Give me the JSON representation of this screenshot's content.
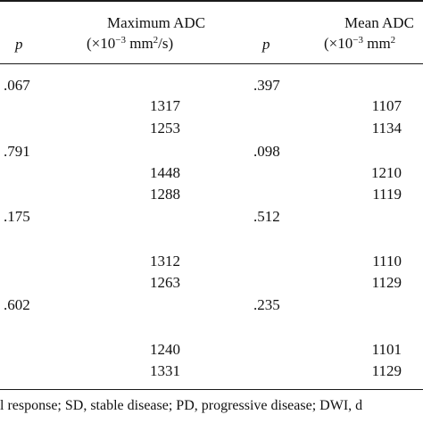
{
  "header": {
    "col_p_left": "p",
    "max_adc_title": "Maximum ADC",
    "max_adc_unit_pre": "(×10",
    "max_adc_unit_exp": "−3",
    "max_adc_unit_mid": " mm",
    "max_adc_unit_sq": "2",
    "max_adc_unit_post": "/s)",
    "col_p_right": "p",
    "mean_adc_title": "Mean ADC",
    "mean_adc_unit_pre": "(×10",
    "mean_adc_unit_exp": "−3",
    "mean_adc_unit_mid": " mm",
    "mean_adc_unit_sq": "2"
  },
  "rows": [
    {
      "p_max": ".067",
      "p_mean": ".397"
    },
    {
      "max": "1317",
      "mean": "1107"
    },
    {
      "max": "1253",
      "mean": "1134"
    },
    {
      "p_max": ".791",
      "p_mean": ".098"
    },
    {
      "max": "1448",
      "mean": "1210"
    },
    {
      "max": "1288",
      "mean": "1119"
    },
    {
      "p_max": ".175",
      "p_mean": ".512"
    },
    {
      "max": "1312",
      "mean": "1110"
    },
    {
      "max": "1263",
      "mean": "1129"
    },
    {
      "p_max": ".602",
      "p_mean": ".235"
    },
    {
      "max": "1240",
      "mean": "1101"
    },
    {
      "max": "1331",
      "mean": "1129"
    }
  ],
  "footer": "l response; SD, stable disease; PD, progressive disease; DWI, d"
}
